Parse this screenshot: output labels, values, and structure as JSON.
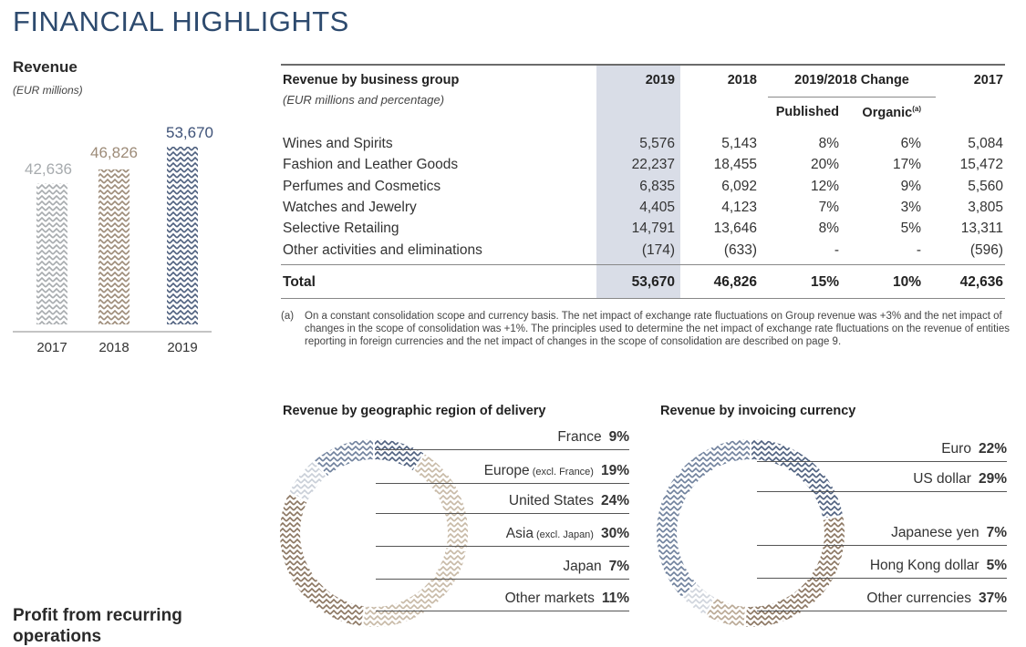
{
  "page": {
    "title": "FINANCIAL HIGHLIGHTS"
  },
  "revenue_chart": {
    "title": "Revenue",
    "unit": "(EUR millions)",
    "colors": {
      "2017": "#a7abae",
      "2018": "#9d8b78",
      "2019": "#4d5f7e"
    }
  },
  "chart_data": [
    {
      "type": "bar",
      "title": "Revenue",
      "ylabel": "(EUR millions)",
      "categories": [
        "2017",
        "2018",
        "2019"
      ],
      "values": [
        42636,
        46826,
        53670
      ],
      "value_labels": [
        "42,636",
        "46,826",
        "53,670"
      ],
      "ylim": [
        0,
        53670
      ]
    },
    {
      "type": "pie",
      "title": "Revenue by geographic region of delivery",
      "labels": [
        "France",
        "Europe",
        "United States",
        "Asia",
        "Japan",
        "Other markets"
      ],
      "values": [
        9,
        19,
        24,
        30,
        7,
        11
      ]
    },
    {
      "type": "pie",
      "title": "Revenue by invoicing currency",
      "labels": [
        "Euro",
        "US dollar",
        "Japanese yen",
        "Hong Kong dollar",
        "Other currencies"
      ],
      "values": [
        22,
        29,
        7,
        5,
        37
      ]
    }
  ],
  "table": {
    "title": "Revenue by business group",
    "subtitle": "(EUR millions and percentage)",
    "col_2019": "2019",
    "col_2018": "2018",
    "col_change": "2019/2018 Change",
    "col_published": "Published",
    "col_organic": "Organic",
    "col_organic_note": "(a)",
    "col_2017": "2017",
    "rows": [
      {
        "label": "Wines and Spirits",
        "y2019": "5,576",
        "y2018": "5,143",
        "published": "8%",
        "organic": "6%",
        "y2017": "5,084"
      },
      {
        "label": "Fashion and Leather Goods",
        "y2019": "22,237",
        "y2018": "18,455",
        "published": "20%",
        "organic": "17%",
        "y2017": "15,472"
      },
      {
        "label": "Perfumes and Cosmetics",
        "y2019": "6,835",
        "y2018": "6,092",
        "published": "12%",
        "organic": "9%",
        "y2017": "5,560"
      },
      {
        "label": "Watches and Jewelry",
        "y2019": "4,405",
        "y2018": "4,123",
        "published": "7%",
        "organic": "3%",
        "y2017": "3,805"
      },
      {
        "label": "Selective Retailing",
        "y2019": "14,791",
        "y2018": "13,646",
        "published": "8%",
        "organic": "5%",
        "y2017": "13,311"
      },
      {
        "label": "Other activities and eliminations",
        "y2019": "(174)",
        "y2018": "(633)",
        "published": "-",
        "organic": "-",
        "y2017": "(596)"
      }
    ],
    "total": {
      "label": "Total",
      "y2019": "53,670",
      "y2018": "46,826",
      "published": "15%",
      "organic": "10%",
      "y2017": "42,636"
    },
    "footnote_mark": "(a)",
    "footnote": "On a constant consolidation scope and currency basis. The net impact of exchange rate fluctuations on Group revenue was +3% and the net impact of changes in the scope of consolidation was +1%. The principles used to determine the net impact of exchange rate fluctuations on the revenue of entities reporting in foreign currencies and the net impact of changes in the scope of consolidation are described on page 9."
  },
  "geo_chart": {
    "title": "Revenue by geographic region of delivery",
    "items": [
      {
        "label": "France",
        "qualifier": "",
        "pct": "9%",
        "color": "#4d5f7e"
      },
      {
        "label": "Europe",
        "qualifier": "(excl. France)",
        "pct": "19%",
        "color": "#c7b9a6"
      },
      {
        "label": "United States",
        "qualifier": "",
        "pct": "24%",
        "color": "#c7b9a6"
      },
      {
        "label": "Asia",
        "qualifier": "(excl. Japan)",
        "pct": "30%",
        "color": "#8a7560"
      },
      {
        "label": "Japan",
        "qualifier": "",
        "pct": "7%",
        "color": "#c9cfd8"
      },
      {
        "label": "Other markets",
        "qualifier": "",
        "pct": "11%",
        "color": "#6f809c"
      }
    ]
  },
  "currency_chart": {
    "title": "Revenue by invoicing currency",
    "items": [
      {
        "label": "Euro",
        "pct": "22%",
        "color": "#4d5f7e"
      },
      {
        "label": "US dollar",
        "pct": "29%",
        "color": "#8a7560"
      },
      {
        "label": "Japanese yen",
        "pct": "7%",
        "color": "#b9a894"
      },
      {
        "label": "Hong Kong dollar",
        "pct": "5%",
        "color": "#cfd4dc"
      },
      {
        "label": "Other currencies",
        "pct": "37%",
        "color": "#6f809c"
      }
    ]
  },
  "profit": {
    "title": "Profit from recurring operations"
  }
}
